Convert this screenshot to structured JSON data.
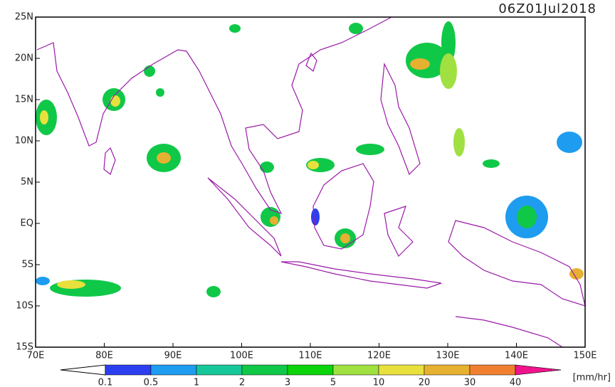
{
  "map": {
    "title": "06Z01Jul2018",
    "lon_range": [
      70,
      150
    ],
    "lat_range": [
      -15,
      25
    ],
    "lon_ticks": [
      {
        "value": 70,
        "label": "70E"
      },
      {
        "value": 80,
        "label": "80E"
      },
      {
        "value": 90,
        "label": "90E"
      },
      {
        "value": 100,
        "label": "100E"
      },
      {
        "value": 110,
        "label": "110E"
      },
      {
        "value": 120,
        "label": "120E"
      },
      {
        "value": 130,
        "label": "130E"
      },
      {
        "value": 140,
        "label": "140E"
      },
      {
        "value": 150,
        "label": "150E"
      }
    ],
    "lat_ticks": [
      {
        "value": 25,
        "label": "25N"
      },
      {
        "value": 20,
        "label": "20N"
      },
      {
        "value": 15,
        "label": "15N"
      },
      {
        "value": 10,
        "label": "10N"
      },
      {
        "value": 5,
        "label": "5N"
      },
      {
        "value": 0,
        "label": "EQ"
      },
      {
        "value": -5,
        "label": "5S"
      },
      {
        "value": -10,
        "label": "10S"
      },
      {
        "value": -15,
        "label": "15S"
      }
    ],
    "colorbar": {
      "levels": [
        0.1,
        0.5,
        1,
        2,
        3,
        5,
        10,
        20,
        30,
        40
      ],
      "colors": [
        "#2b3ff0",
        "#1e9cf0",
        "#16c79a",
        "#10c848",
        "#0bd40b",
        "#a0e040",
        "#e8e03c",
        "#e6b030",
        "#f08030",
        "#f03c3c",
        "#f0148c"
      ],
      "unit": "[mm/hr]"
    }
  }
}
